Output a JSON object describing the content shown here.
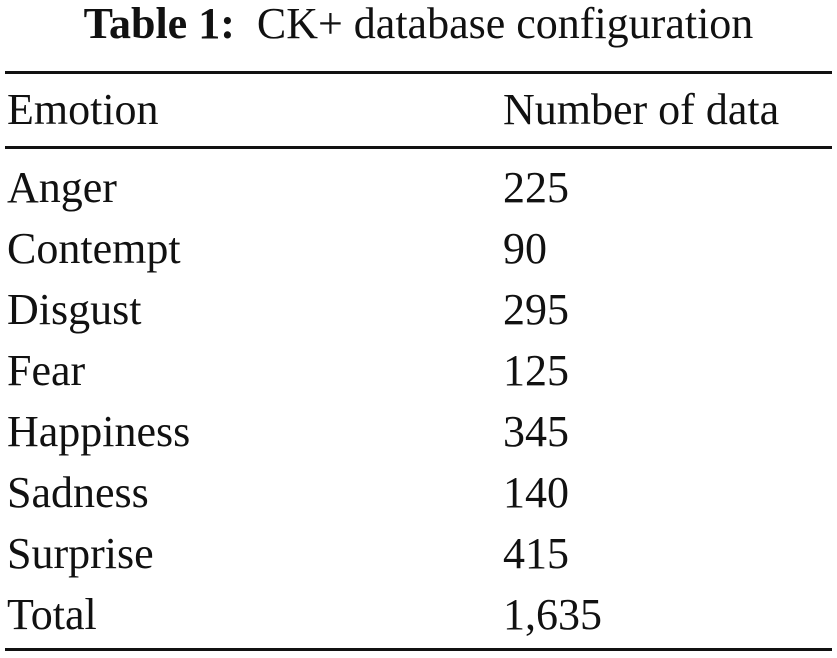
{
  "caption": {
    "label": "Table 1:",
    "text": "CK+ database configuration"
  },
  "table": {
    "columns": [
      "Emotion",
      "Number of data"
    ],
    "rows": [
      {
        "emotion": "Anger",
        "count": "225"
      },
      {
        "emotion": "Contempt",
        "count": "90"
      },
      {
        "emotion": "Disgust",
        "count": "295"
      },
      {
        "emotion": "Fear",
        "count": "125"
      },
      {
        "emotion": "Happiness",
        "count": "345"
      },
      {
        "emotion": "Sadness",
        "count": "140"
      },
      {
        "emotion": "Surprise",
        "count": "415"
      },
      {
        "emotion": "Total",
        "count": "1,635"
      }
    ]
  }
}
